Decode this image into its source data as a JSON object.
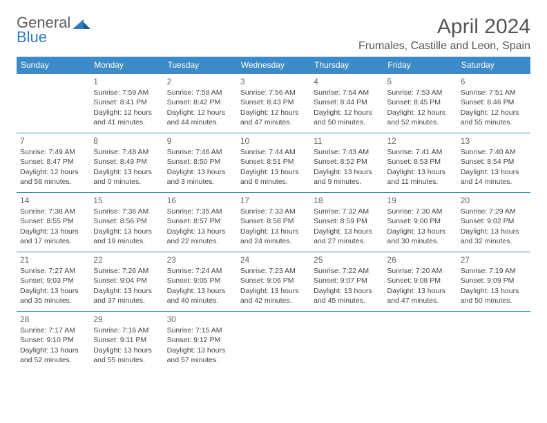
{
  "brand": {
    "part1": "General",
    "part2": "Blue"
  },
  "title": "April 2024",
  "location": "Frumales, Castille and Leon, Spain",
  "colors": {
    "header_bg": "#3b8bc8",
    "header_text": "#ffffff",
    "cell_border": "#3b8bc8",
    "text": "#444444",
    "brand_gray": "#5a5a5a",
    "brand_blue": "#2f7bbf",
    "background": "#ffffff"
  },
  "day_headers": [
    "Sunday",
    "Monday",
    "Tuesday",
    "Wednesday",
    "Thursday",
    "Friday",
    "Saturday"
  ],
  "weeks": [
    [
      {
        "n": "",
        "sr": "",
        "ss": "",
        "dl": ""
      },
      {
        "n": "1",
        "sr": "Sunrise: 7:59 AM",
        "ss": "Sunset: 8:41 PM",
        "dl": "Daylight: 12 hours and 41 minutes."
      },
      {
        "n": "2",
        "sr": "Sunrise: 7:58 AM",
        "ss": "Sunset: 8:42 PM",
        "dl": "Daylight: 12 hours and 44 minutes."
      },
      {
        "n": "3",
        "sr": "Sunrise: 7:56 AM",
        "ss": "Sunset: 8:43 PM",
        "dl": "Daylight: 12 hours and 47 minutes."
      },
      {
        "n": "4",
        "sr": "Sunrise: 7:54 AM",
        "ss": "Sunset: 8:44 PM",
        "dl": "Daylight: 12 hours and 50 minutes."
      },
      {
        "n": "5",
        "sr": "Sunrise: 7:53 AM",
        "ss": "Sunset: 8:45 PM",
        "dl": "Daylight: 12 hours and 52 minutes."
      },
      {
        "n": "6",
        "sr": "Sunrise: 7:51 AM",
        "ss": "Sunset: 8:46 PM",
        "dl": "Daylight: 12 hours and 55 minutes."
      }
    ],
    [
      {
        "n": "7",
        "sr": "Sunrise: 7:49 AM",
        "ss": "Sunset: 8:47 PM",
        "dl": "Daylight: 12 hours and 58 minutes."
      },
      {
        "n": "8",
        "sr": "Sunrise: 7:48 AM",
        "ss": "Sunset: 8:49 PM",
        "dl": "Daylight: 13 hours and 0 minutes."
      },
      {
        "n": "9",
        "sr": "Sunrise: 7:46 AM",
        "ss": "Sunset: 8:50 PM",
        "dl": "Daylight: 13 hours and 3 minutes."
      },
      {
        "n": "10",
        "sr": "Sunrise: 7:44 AM",
        "ss": "Sunset: 8:51 PM",
        "dl": "Daylight: 13 hours and 6 minutes."
      },
      {
        "n": "11",
        "sr": "Sunrise: 7:43 AM",
        "ss": "Sunset: 8:52 PM",
        "dl": "Daylight: 13 hours and 9 minutes."
      },
      {
        "n": "12",
        "sr": "Sunrise: 7:41 AM",
        "ss": "Sunset: 8:53 PM",
        "dl": "Daylight: 13 hours and 11 minutes."
      },
      {
        "n": "13",
        "sr": "Sunrise: 7:40 AM",
        "ss": "Sunset: 8:54 PM",
        "dl": "Daylight: 13 hours and 14 minutes."
      }
    ],
    [
      {
        "n": "14",
        "sr": "Sunrise: 7:38 AM",
        "ss": "Sunset: 8:55 PM",
        "dl": "Daylight: 13 hours and 17 minutes."
      },
      {
        "n": "15",
        "sr": "Sunrise: 7:36 AM",
        "ss": "Sunset: 8:56 PM",
        "dl": "Daylight: 13 hours and 19 minutes."
      },
      {
        "n": "16",
        "sr": "Sunrise: 7:35 AM",
        "ss": "Sunset: 8:57 PM",
        "dl": "Daylight: 13 hours and 22 minutes."
      },
      {
        "n": "17",
        "sr": "Sunrise: 7:33 AM",
        "ss": "Sunset: 8:58 PM",
        "dl": "Daylight: 13 hours and 24 minutes."
      },
      {
        "n": "18",
        "sr": "Sunrise: 7:32 AM",
        "ss": "Sunset: 8:59 PM",
        "dl": "Daylight: 13 hours and 27 minutes."
      },
      {
        "n": "19",
        "sr": "Sunrise: 7:30 AM",
        "ss": "Sunset: 9:00 PM",
        "dl": "Daylight: 13 hours and 30 minutes."
      },
      {
        "n": "20",
        "sr": "Sunrise: 7:29 AM",
        "ss": "Sunset: 9:02 PM",
        "dl": "Daylight: 13 hours and 32 minutes."
      }
    ],
    [
      {
        "n": "21",
        "sr": "Sunrise: 7:27 AM",
        "ss": "Sunset: 9:03 PM",
        "dl": "Daylight: 13 hours and 35 minutes."
      },
      {
        "n": "22",
        "sr": "Sunrise: 7:26 AM",
        "ss": "Sunset: 9:04 PM",
        "dl": "Daylight: 13 hours and 37 minutes."
      },
      {
        "n": "23",
        "sr": "Sunrise: 7:24 AM",
        "ss": "Sunset: 9:05 PM",
        "dl": "Daylight: 13 hours and 40 minutes."
      },
      {
        "n": "24",
        "sr": "Sunrise: 7:23 AM",
        "ss": "Sunset: 9:06 PM",
        "dl": "Daylight: 13 hours and 42 minutes."
      },
      {
        "n": "25",
        "sr": "Sunrise: 7:22 AM",
        "ss": "Sunset: 9:07 PM",
        "dl": "Daylight: 13 hours and 45 minutes."
      },
      {
        "n": "26",
        "sr": "Sunrise: 7:20 AM",
        "ss": "Sunset: 9:08 PM",
        "dl": "Daylight: 13 hours and 47 minutes."
      },
      {
        "n": "27",
        "sr": "Sunrise: 7:19 AM",
        "ss": "Sunset: 9:09 PM",
        "dl": "Daylight: 13 hours and 50 minutes."
      }
    ],
    [
      {
        "n": "28",
        "sr": "Sunrise: 7:17 AM",
        "ss": "Sunset: 9:10 PM",
        "dl": "Daylight: 13 hours and 52 minutes."
      },
      {
        "n": "29",
        "sr": "Sunrise: 7:16 AM",
        "ss": "Sunset: 9:11 PM",
        "dl": "Daylight: 13 hours and 55 minutes."
      },
      {
        "n": "30",
        "sr": "Sunrise: 7:15 AM",
        "ss": "Sunset: 9:12 PM",
        "dl": "Daylight: 13 hours and 57 minutes."
      },
      {
        "n": "",
        "sr": "",
        "ss": "",
        "dl": ""
      },
      {
        "n": "",
        "sr": "",
        "ss": "",
        "dl": ""
      },
      {
        "n": "",
        "sr": "",
        "ss": "",
        "dl": ""
      },
      {
        "n": "",
        "sr": "",
        "ss": "",
        "dl": ""
      }
    ]
  ]
}
